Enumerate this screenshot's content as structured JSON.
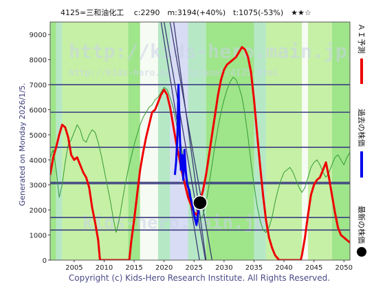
{
  "header": {
    "title": "4125=三和油化工　 c:2290　m:3194(+40%)　t:1075(-53%)　★★☆"
  },
  "side_label": "Generated on Monday 2026/1/5.",
  "watermarks": [
    "http://kids-hero.main.jp/",
    "http://kids-hero.main.jp/anal/4125.html",
    "kids-hero.main.jp"
  ],
  "legend": {
    "forecast": "ＡＩ予測",
    "past": "過去の株価",
    "latest": "最新の株価"
  },
  "copyright": "Copyright (c) Kids-Hero Research Institute. All Rights Reserved.",
  "colors": {
    "forecast": "#ee0000",
    "past": "#0000ee",
    "latest": "#000000",
    "band_light": "#c6f0a6",
    "band_green": "#9fe58a",
    "band_teal": "#b6e8c6",
    "band_blue": "#d8dcf4",
    "band_white": "#f6fbf3",
    "hline": "#3a3a80",
    "trend": "#3a3a70",
    "envelope": "#339933"
  },
  "chart_data": {
    "type": "line",
    "xlim": [
      2001,
      2051
    ],
    "ylim": [
      0,
      9500
    ],
    "xticks": [
      2005,
      2010,
      2015,
      2020,
      2025,
      2030,
      2035,
      2040,
      2045,
      2050
    ],
    "yticks": [
      0,
      1000,
      2000,
      3000,
      4000,
      5000,
      6000,
      7000,
      8000,
      9000
    ],
    "grid": false,
    "latest_point": {
      "x": 2026.0,
      "y": 2290
    },
    "horizontal_levels": [
      1200,
      1700,
      3050,
      3100,
      4500,
      5900,
      7000
    ],
    "trend_lines": [
      {
        "x1": 2020.0,
        "y1": 9500,
        "x2": 2026.9,
        "y2": 0
      },
      {
        "x1": 2021.0,
        "y1": 9500,
        "x2": 2028.0,
        "y2": 0
      },
      {
        "x1": 2019.5,
        "y1": 9500,
        "x2": 2025.9,
        "y2": 0
      },
      {
        "x1": 2021.6,
        "y1": 9500,
        "x2": 2027.0,
        "y2": 0
      }
    ],
    "bands": [
      {
        "from": 2001,
        "to": 2002,
        "color": "band_green"
      },
      {
        "from": 2002,
        "to": 2003,
        "color": "band_teal"
      },
      {
        "from": 2003,
        "to": 2014,
        "color": "band_light"
      },
      {
        "from": 2014,
        "to": 2016,
        "color": "band_green"
      },
      {
        "from": 2016,
        "to": 2019,
        "color": "band_white"
      },
      {
        "from": 2019,
        "to": 2021,
        "color": "band_teal"
      },
      {
        "from": 2021,
        "to": 2024,
        "color": "band_blue"
      },
      {
        "from": 2024,
        "to": 2027,
        "color": "band_teal"
      },
      {
        "from": 2027,
        "to": 2035,
        "color": "band_green"
      },
      {
        "from": 2035,
        "to": 2037,
        "color": "band_teal"
      },
      {
        "from": 2037,
        "to": 2043,
        "color": "band_light"
      },
      {
        "from": 2043,
        "to": 2044,
        "color": "band_white"
      },
      {
        "from": 2044,
        "to": 2048,
        "color": "band_light"
      },
      {
        "from": 2048,
        "to": 2051,
        "color": "band_green"
      }
    ],
    "series": [
      {
        "name": "ＡＩ予測",
        "color": "forecast",
        "x": [
          2001.0,
          2001.5,
          2002.0,
          2002.5,
          2003.0,
          2003.5,
          2004.0,
          2004.5,
          2005.0,
          2005.5,
          2006.0,
          2006.5,
          2007.0,
          2007.5,
          2008.0,
          2008.5,
          2009.0,
          2009.3,
          2014.2,
          2014.5,
          2015.0,
          2015.5,
          2016.0,
          2016.5,
          2017.0,
          2017.5,
          2018.0,
          2018.5,
          2019.0,
          2019.5,
          2020.0,
          2020.5,
          2021.0,
          2021.5,
          2022.0,
          2022.5,
          2023.0,
          2023.5,
          2024.0,
          2024.5,
          2025.0,
          2025.5,
          2026.0,
          2026.5,
          2027.0,
          2027.5,
          2028.0,
          2028.5,
          2029.0,
          2029.5,
          2030.0,
          2030.5,
          2031.0,
          2031.5,
          2032.0,
          2032.5,
          2033.0,
          2033.5,
          2034.0,
          2034.5,
          2035.0,
          2035.5,
          2036.0,
          2036.5,
          2037.0,
          2037.5,
          2038.0,
          2038.5,
          2039.0,
          2039.2,
          2042.8,
          2043.0,
          2043.5,
          2044.0,
          2044.5,
          2045.0,
          2045.5,
          2046.0,
          2046.5,
          2047.0,
          2047.5,
          2048.0,
          2048.5,
          2049.0,
          2049.5,
          2050.0,
          2050.5,
          2051.0
        ],
        "y": [
          3400,
          4100,
          4500,
          5000,
          5400,
          5300,
          4900,
          4200,
          4000,
          4100,
          3800,
          3500,
          3300,
          2900,
          2100,
          1500,
          800,
          0,
          0,
          700,
          1600,
          2600,
          3600,
          4300,
          4900,
          5400,
          5900,
          6000,
          6300,
          6600,
          6800,
          6600,
          6100,
          5400,
          4700,
          4100,
          3500,
          3000,
          2500,
          2200,
          1900,
          1800,
          2300,
          2800,
          3400,
          4200,
          5000,
          5800,
          6600,
          7200,
          7600,
          7800,
          7900,
          8000,
          8100,
          8300,
          8500,
          8400,
          8100,
          7500,
          6400,
          5100,
          3800,
          2600,
          1600,
          900,
          500,
          200,
          50,
          0,
          0,
          200,
          900,
          1800,
          2600,
          3000,
          3200,
          3300,
          3600,
          3900,
          3300,
          2600,
          1900,
          1300,
          1000,
          900,
          800,
          700
        ]
      },
      {
        "name": "過去の株価",
        "color": "past",
        "x": [
          2021.8,
          2022.0,
          2022.2,
          2022.4,
          2022.6,
          2022.8,
          2023.0,
          2023.2,
          2023.4,
          2023.6,
          2023.8,
          2024.0,
          2024.2,
          2024.4,
          2024.6,
          2024.8,
          2025.0,
          2025.2,
          2025.4,
          2025.6,
          2025.8,
          2026.0
        ],
        "y": [
          3400,
          3900,
          4800,
          7000,
          5200,
          3600,
          4200,
          3200,
          4400,
          3600,
          3100,
          2900,
          2800,
          2500,
          2300,
          2100,
          1800,
          1600,
          1400,
          1700,
          2100,
          2290
        ]
      },
      {
        "name": "",
        "color": "envelope",
        "x": [
          2001.0,
          2001.5,
          2002.0,
          2002.5,
          2003.0,
          2003.5,
          2004.0,
          2004.5,
          2005.0,
          2005.5,
          2006.0,
          2006.5,
          2007.0,
          2007.5,
          2008.0,
          2008.5,
          2009.0,
          2009.5,
          2010.0,
          2010.5,
          2011.0,
          2011.5,
          2012.0,
          2012.5,
          2013.0,
          2013.5,
          2014.0,
          2014.5,
          2015.0,
          2015.5,
          2016.0,
          2016.5,
          2017.0,
          2017.5,
          2018.0,
          2018.5,
          2019.0,
          2019.5,
          2020.0,
          2020.5,
          2021.0,
          2021.5,
          2022.0,
          2022.5,
          2023.0,
          2023.5,
          2024.0,
          2024.5,
          2025.0,
          2025.5,
          2026.0,
          2026.5,
          2027.0,
          2027.5,
          2028.0,
          2028.5,
          2029.0,
          2029.5,
          2030.0,
          2030.5,
          2031.0,
          2031.5,
          2032.0,
          2032.5,
          2033.0,
          2033.5,
          2034.0,
          2034.5,
          2035.0,
          2035.5,
          2036.0,
          2036.5,
          2037.0,
          2037.5,
          2038.0,
          2038.5,
          2039.0,
          2039.5,
          2040.0,
          2040.5,
          2041.0,
          2041.5,
          2042.0,
          2042.5,
          2043.0,
          2043.5,
          2044.0,
          2044.5,
          2045.0,
          2045.5,
          2046.0,
          2046.5,
          2047.0,
          2047.5,
          2048.0,
          2048.5,
          2049.0,
          2049.5,
          2050.0,
          2050.5,
          2051.0
        ],
        "y": [
          4100,
          4400,
          3600,
          2500,
          3000,
          3900,
          4600,
          4800,
          5100,
          5400,
          5200,
          4800,
          4700,
          5000,
          5200,
          5100,
          4700,
          4200,
          3600,
          3000,
          2400,
          1700,
          1100,
          1600,
          2300,
          3000,
          3600,
          4100,
          4600,
          5000,
          5400,
          5700,
          5900,
          6100,
          6200,
          6400,
          6500,
          6700,
          6900,
          6800,
          6500,
          6100,
          5500,
          4900,
          4300,
          3700,
          3100,
          2500,
          2000,
          1700,
          1600,
          1800,
          2300,
          3000,
          3800,
          4600,
          5300,
          5900,
          6400,
          6800,
          7100,
          7300,
          7200,
          6900,
          6500,
          5800,
          4900,
          3900,
          3000,
          2200,
          1600,
          1200,
          1100,
          1300,
          1700,
          2300,
          2800,
          3200,
          3500,
          3600,
          3700,
          3500,
          3200,
          2900,
          2700,
          2900,
          3300,
          3700,
          3900,
          4000,
          3800,
          3500,
          3300,
          3500,
          3800,
          4100,
          4200,
          4000,
          3800,
          4100,
          4300
        ]
      }
    ]
  }
}
